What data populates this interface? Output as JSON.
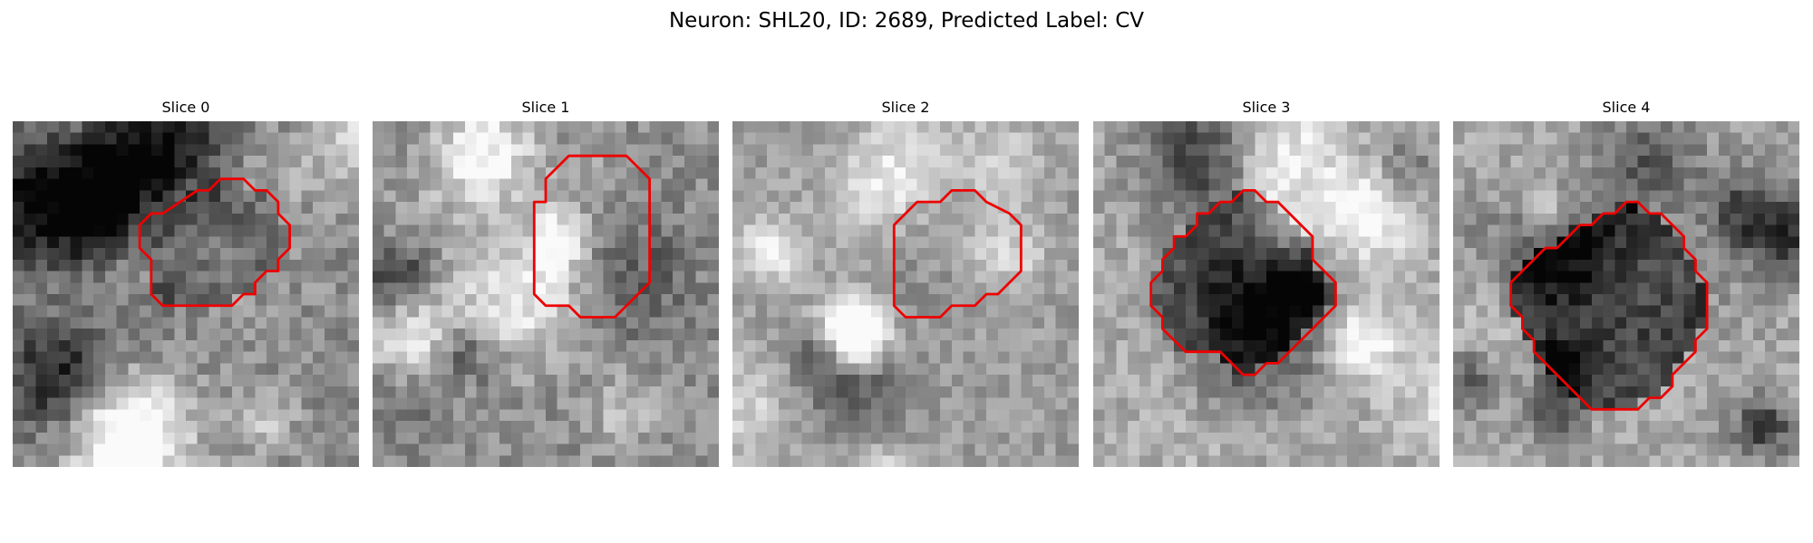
{
  "figure": {
    "title": "Neuron: SHL20, ID: 2689, Predicted Label: CV"
  },
  "colors": {
    "contour": "#ee0000",
    "colormap": "gray"
  },
  "panels": [
    {
      "title": "Slice 0",
      "grid_size": 30,
      "seed": 11,
      "brightness": 0.55,
      "contrast": 1.15,
      "cell_intensity": -0.15,
      "contour": [
        [
          13,
          8
        ],
        [
          16,
          6
        ],
        [
          17,
          6
        ],
        [
          18,
          5
        ],
        [
          20,
          5
        ],
        [
          21,
          6
        ],
        [
          22,
          6
        ],
        [
          23,
          7
        ],
        [
          23,
          8
        ],
        [
          24,
          9
        ],
        [
          24,
          11
        ],
        [
          23,
          12
        ],
        [
          23,
          13
        ],
        [
          22,
          13
        ],
        [
          21,
          14
        ],
        [
          21,
          15
        ],
        [
          20,
          15
        ],
        [
          19,
          16
        ],
        [
          13,
          16
        ],
        [
          12,
          15
        ],
        [
          12,
          12
        ],
        [
          11,
          11
        ],
        [
          11,
          9
        ],
        [
          12,
          8
        ]
      ]
    },
    {
      "title": "Slice 1",
      "grid_size": 30,
      "seed": 23,
      "brightness": 0.55,
      "contrast": 1.1,
      "cell_intensity": 0.05,
      "contour": [
        [
          15,
          5
        ],
        [
          17,
          3
        ],
        [
          22,
          3
        ],
        [
          24,
          5
        ],
        [
          24,
          14
        ],
        [
          21,
          17
        ],
        [
          18,
          17
        ],
        [
          17,
          16
        ],
        [
          15,
          16
        ],
        [
          14,
          15
        ],
        [
          14,
          7
        ],
        [
          15,
          7
        ]
      ]
    },
    {
      "title": "Slice 2",
      "grid_size": 30,
      "seed": 37,
      "brightness": 0.62,
      "contrast": 0.9,
      "cell_intensity": -0.05,
      "contour": [
        [
          17,
          7
        ],
        [
          18,
          7
        ],
        [
          19,
          6
        ],
        [
          21,
          6
        ],
        [
          22,
          7
        ],
        [
          24,
          8
        ],
        [
          25,
          9
        ],
        [
          25,
          13
        ],
        [
          23,
          15
        ],
        [
          22,
          15
        ],
        [
          21,
          16
        ],
        [
          19,
          16
        ],
        [
          18,
          17
        ],
        [
          15,
          17
        ],
        [
          14,
          16
        ],
        [
          14,
          9
        ],
        [
          16,
          7
        ]
      ]
    },
    {
      "title": "Slice 3",
      "grid_size": 30,
      "seed": 51,
      "brightness": 0.66,
      "contrast": 1.0,
      "cell_intensity": -0.3,
      "contour": [
        [
          7,
          10
        ],
        [
          8,
          10
        ],
        [
          9,
          9
        ],
        [
          9,
          8
        ],
        [
          10,
          8
        ],
        [
          11,
          7
        ],
        [
          12,
          7
        ],
        [
          13,
          6
        ],
        [
          14,
          6
        ],
        [
          15,
          7
        ],
        [
          16,
          7
        ],
        [
          17,
          8
        ],
        [
          18,
          9
        ],
        [
          19,
          10
        ],
        [
          19,
          12
        ],
        [
          20,
          13
        ],
        [
          21,
          14
        ],
        [
          21,
          16
        ],
        [
          20,
          17
        ],
        [
          19,
          18
        ],
        [
          18,
          19
        ],
        [
          17,
          20
        ],
        [
          16,
          21
        ],
        [
          15,
          21
        ],
        [
          14,
          22
        ],
        [
          13,
          22
        ],
        [
          12,
          21
        ],
        [
          11,
          20
        ],
        [
          8,
          20
        ],
        [
          7,
          19
        ],
        [
          6,
          18
        ],
        [
          6,
          17
        ],
        [
          5,
          16
        ],
        [
          5,
          14
        ],
        [
          6,
          13
        ],
        [
          6,
          12
        ],
        [
          7,
          11
        ]
      ]
    },
    {
      "title": "Slice 4",
      "grid_size": 30,
      "seed": 67,
      "brightness": 0.66,
      "contrast": 1.0,
      "cell_intensity": -0.38,
      "contour": [
        [
          10,
          10
        ],
        [
          11,
          9
        ],
        [
          12,
          9
        ],
        [
          13,
          8
        ],
        [
          14,
          8
        ],
        [
          15,
          7
        ],
        [
          16,
          7
        ],
        [
          17,
          8
        ],
        [
          18,
          8
        ],
        [
          19,
          9
        ],
        [
          20,
          10
        ],
        [
          20,
          11
        ],
        [
          21,
          12
        ],
        [
          21,
          13
        ],
        [
          22,
          14
        ],
        [
          22,
          18
        ],
        [
          21,
          19
        ],
        [
          21,
          20
        ],
        [
          20,
          21
        ],
        [
          19,
          22
        ],
        [
          19,
          23
        ],
        [
          18,
          24
        ],
        [
          17,
          24
        ],
        [
          16,
          25
        ],
        [
          12,
          25
        ],
        [
          11,
          24
        ],
        [
          10,
          23
        ],
        [
          9,
          22
        ],
        [
          8,
          21
        ],
        [
          7,
          20
        ],
        [
          7,
          19
        ],
        [
          6,
          18
        ],
        [
          6,
          17
        ],
        [
          5,
          16
        ],
        [
          5,
          14
        ],
        [
          6,
          13
        ],
        [
          7,
          12
        ],
        [
          8,
          11
        ],
        [
          9,
          11
        ]
      ]
    }
  ]
}
